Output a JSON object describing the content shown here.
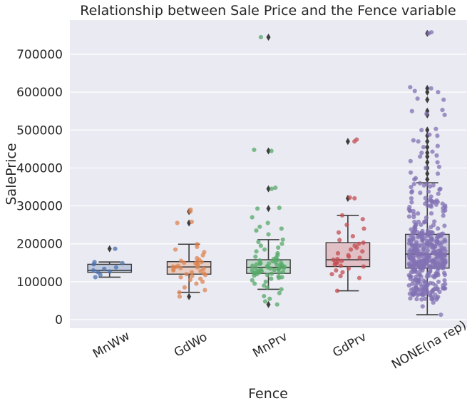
{
  "chart_data": {
    "type": "box",
    "title": "Relationship between Sale Price and the Fence variable",
    "xlabel": "Fence",
    "ylabel": "SalePrice",
    "ylim": [
      -20000,
      790000
    ],
    "yticks": [
      0,
      100000,
      200000,
      300000,
      400000,
      500000,
      600000,
      700000
    ],
    "ytick_labels": [
      "0",
      "100000",
      "200000",
      "300000",
      "400000",
      "500000",
      "600000",
      "700000"
    ],
    "grid": true,
    "categories": [
      "MnWw",
      "GdWo",
      "MnPrv",
      "GdPrv",
      "NONE(na rep)"
    ],
    "colors": [
      "#4c72b0",
      "#dd8452",
      "#55a868",
      "#c44e52",
      "#8172b3"
    ],
    "boxes": [
      {
        "category": "MnWw",
        "whisker_low": 112000,
        "q1": 125000,
        "median": 130000,
        "q3": 146000,
        "whisker_high": 152000,
        "outliers": [
          187000
        ],
        "points": [
          112000,
          118000,
          125000,
          127000,
          130000,
          134000,
          138000,
          146000,
          149000,
          152000,
          187000
        ]
      },
      {
        "category": "GdWo",
        "whisker_low": 72000,
        "q1": 120000,
        "median": 139000,
        "q3": 153000,
        "whisker_high": 199000,
        "outliers": [
          61000,
          255000,
          285000
        ],
        "points": [
          72000,
          78000,
          85000,
          95000,
          100000,
          105000,
          108000,
          112000,
          115000,
          118000,
          120000,
          122000,
          125000,
          128000,
          130000,
          132000,
          134000,
          136000,
          138000,
          139000,
          140000,
          142000,
          144000,
          146000,
          148000,
          150000,
          152000,
          153000,
          155000,
          158000,
          162000,
          170000,
          178000,
          185000,
          192000,
          199000,
          61000,
          255000,
          258000,
          285000,
          290000
        ]
      },
      {
        "category": "MnPrv",
        "whisker_low": 80000,
        "q1": 122000,
        "median": 138000,
        "q3": 158000,
        "whisker_high": 211000,
        "outliers": [
          40000,
          293000,
          345000,
          445000,
          745000
        ],
        "points": [
          80000,
          85000,
          90000,
          95000,
          100000,
          104000,
          108000,
          110000,
          112000,
          114000,
          116000,
          118000,
          120000,
          121000,
          122000,
          123000,
          124000,
          125000,
          126000,
          127000,
          128000,
          129000,
          130000,
          131000,
          132000,
          133000,
          134000,
          135000,
          136000,
          137000,
          138000,
          139000,
          140000,
          141000,
          142000,
          143000,
          144000,
          145000,
          146000,
          147000,
          148000,
          149000,
          150000,
          152000,
          154000,
          156000,
          158000,
          160000,
          163000,
          166000,
          170000,
          175000,
          180000,
          185000,
          190000,
          195000,
          200000,
          205000,
          211000,
          40000,
          48000,
          55000,
          62000,
          70000,
          225000,
          235000,
          240000,
          245000,
          255000,
          270000,
          293000,
          295000,
          345000,
          348000,
          445000,
          448000,
          745000
        ]
      },
      {
        "category": "GdPrv",
        "whisker_low": 76000,
        "q1": 140000,
        "median": 158000,
        "q3": 203000,
        "whisker_high": 275000,
        "outliers": [
          320000,
          470000
        ],
        "points": [
          76000,
          110000,
          115000,
          120000,
          125000,
          130000,
          135000,
          140000,
          142000,
          145000,
          148000,
          150000,
          152000,
          155000,
          158000,
          160000,
          163000,
          166000,
          170000,
          175000,
          180000,
          185000,
          190000,
          195000,
          200000,
          203000,
          210000,
          220000,
          230000,
          240000,
          250000,
          265000,
          275000,
          320000,
          322000,
          470000,
          475000
        ]
      },
      {
        "category": "NONE(na rep)",
        "whisker_low": 13000,
        "q1": 136000,
        "median": 173000,
        "q3": 225000,
        "whisker_high": 361000,
        "outliers": [
          370000,
          385000,
          400000,
          415000,
          430000,
          440000,
          455000,
          470000,
          485000,
          500000,
          540000,
          550000,
          580000,
          600000,
          610000,
          755000
        ],
        "points": []
      }
    ]
  }
}
